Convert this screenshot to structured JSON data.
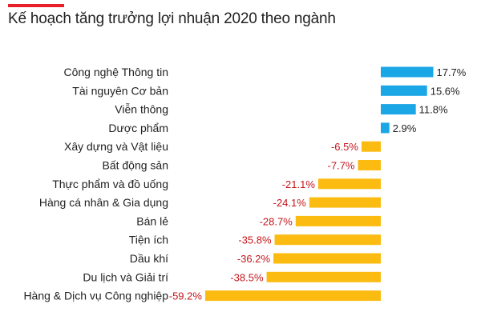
{
  "title": "Kế hoạch tăng trưởng lợi nhuận 2020 theo ngành",
  "colors": {
    "accent": "#e8202a",
    "positive_bar": "#1ba6e6",
    "negative_bar": "#fbbb11",
    "positive_text": "#222222",
    "negative_text": "#c4161c"
  },
  "chart_data": {
    "type": "bar",
    "orientation": "horizontal",
    "title": "Kế hoạch tăng trưởng lợi nhuận 2020 theo ngành",
    "categories": [
      "Công nghệ Thông tin",
      "Tài nguyên Cơ bản",
      "Viễn thông",
      "Dược phẩm",
      "Xây dựng và Vật liệu",
      "Bất động sản",
      "Thực phẩm và đồ uống",
      "Hàng cá nhân & Gia dụng",
      "Bán lẻ",
      "Tiện ích",
      "Dầu khí",
      "Du lịch và Giải trí",
      "Hàng & Dịch vụ Công nghiệp"
    ],
    "values": [
      17.7,
      15.6,
      11.8,
      2.9,
      -6.5,
      -7.7,
      -21.1,
      -24.1,
      -28.7,
      -35.8,
      -36.2,
      -38.5,
      -59.2
    ],
    "value_labels": [
      "17.7%",
      "15.6%",
      "11.8%",
      "2.9%",
      "-6.5%",
      "-7.7%",
      "-21.1%",
      "-24.1%",
      "-28.7%",
      "-35.8%",
      "-36.2%",
      "-38.5%",
      "-59.2%"
    ],
    "xlabel": "",
    "ylabel": "",
    "xlim": [
      -59.2,
      17.7
    ],
    "grid": false,
    "legend": "none"
  }
}
